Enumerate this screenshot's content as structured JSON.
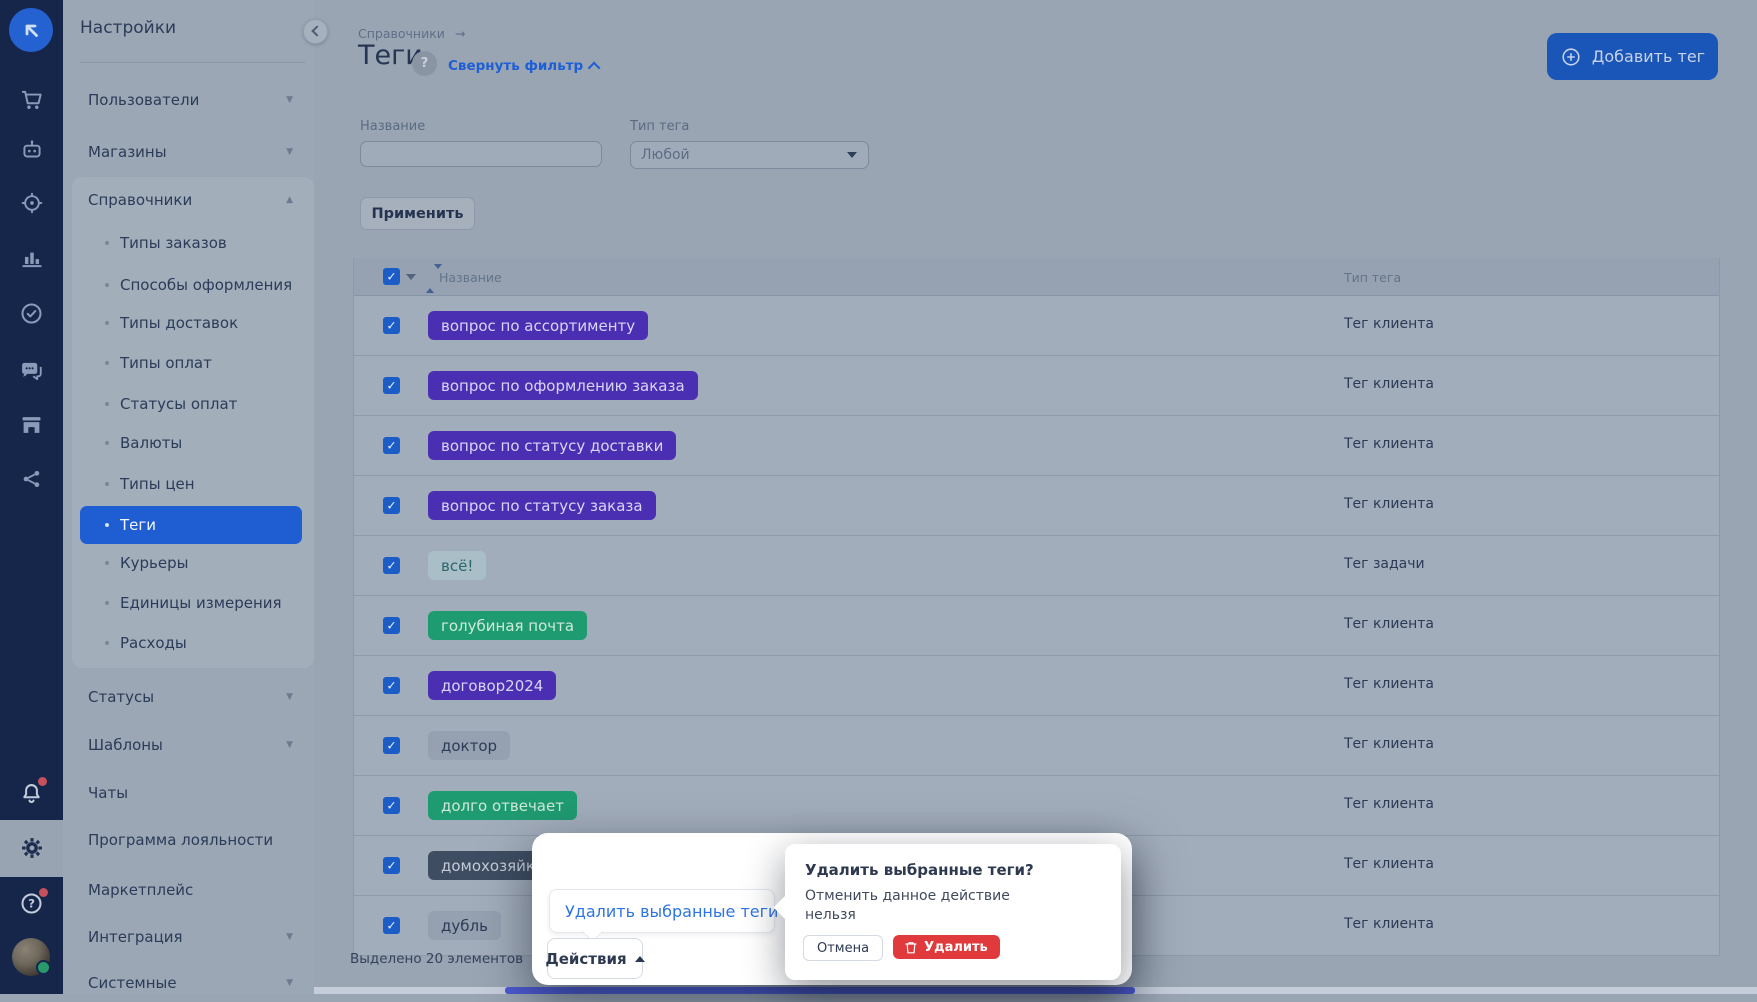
{
  "rail": {
    "icons": [
      {
        "name": "logo"
      },
      {
        "name": "orders-cart"
      },
      {
        "name": "bot"
      },
      {
        "name": "courier-target"
      },
      {
        "name": "analytics-chart"
      },
      {
        "name": "tasks-check"
      },
      {
        "name": "chats"
      },
      {
        "name": "store"
      },
      {
        "name": "integrations-share"
      },
      {
        "name": "notifications-bell",
        "badge": true
      },
      {
        "name": "settings-gear",
        "active": true
      },
      {
        "name": "help-question",
        "badge": true,
        "glyph": "?"
      },
      {
        "name": "avatar",
        "status": "online"
      }
    ]
  },
  "sidebar": {
    "title": "Настройки",
    "items": [
      {
        "label": "Пользователи",
        "chevron": "down"
      },
      {
        "label": "Магазины",
        "chevron": "down"
      },
      {
        "label": "Справочники",
        "chevron": "up",
        "children": [
          {
            "label": "Типы заказов"
          },
          {
            "label": "Способы оформления"
          },
          {
            "label": "Типы доставок"
          },
          {
            "label": "Типы оплат"
          },
          {
            "label": "Статусы оплат"
          },
          {
            "label": "Валюты"
          },
          {
            "label": "Типы цен"
          },
          {
            "label": "Теги",
            "active": true
          },
          {
            "label": "Курьеры"
          },
          {
            "label": "Единицы измерения"
          },
          {
            "label": "Расходы"
          }
        ]
      },
      {
        "label": "Статусы",
        "chevron": "down"
      },
      {
        "label": "Шаблоны",
        "chevron": "down"
      },
      {
        "label": "Чаты",
        "chevron": ""
      },
      {
        "label": "Программа лояльности",
        "chevron": ""
      },
      {
        "label": "Маркетплейс",
        "chevron": ""
      },
      {
        "label": "Интеграция",
        "chevron": "down"
      },
      {
        "label": "Системные",
        "chevron": "down"
      }
    ]
  },
  "header": {
    "breadcrumb": "Справочники",
    "breadcrumb_arrow": "→",
    "title": "Теги",
    "help_glyph": "?",
    "collapse_filter": "Свернуть фильтр",
    "add_button": "Добавить тег"
  },
  "filter": {
    "name_label": "Название",
    "name_value": "",
    "type_label": "Тип тега",
    "type_value": "Любой",
    "apply_label": "Применить"
  },
  "table": {
    "col_name": "Название",
    "col_type": "Тип тега",
    "rows": [
      {
        "tag": "вопрос по ассортименту",
        "color": "purple",
        "type": "Тег клиента",
        "checked": true
      },
      {
        "tag": "вопрос по оформлению заказа",
        "color": "purple",
        "type": "Тег клиента",
        "checked": true
      },
      {
        "tag": "вопрос по статусу доставки",
        "color": "purple",
        "type": "Тег клиента",
        "checked": true
      },
      {
        "tag": "вопрос по статусу заказа",
        "color": "purple",
        "type": "Тег клиента",
        "checked": true
      },
      {
        "tag": "всё!",
        "color": "teal",
        "type": "Тег задачи",
        "checked": true
      },
      {
        "tag": "голубиная почта",
        "color": "green",
        "type": "Тег клиента",
        "checked": true
      },
      {
        "tag": "договор2024",
        "color": "purple",
        "type": "Тег клиента",
        "checked": true
      },
      {
        "tag": "доктор",
        "color": "gray",
        "type": "Тег клиента",
        "checked": true
      },
      {
        "tag": "долго отвечает",
        "color": "green",
        "type": "Тег клиента",
        "checked": true
      },
      {
        "tag": "домохозяйка",
        "color": "slate",
        "type": "Тег клиента",
        "checked": true
      },
      {
        "tag": "дубль",
        "color": "gray",
        "type": "Тег клиента",
        "checked": true
      }
    ]
  },
  "footer": {
    "selected_text": "Выделено 20 элементов",
    "actions_label": "Действия"
  },
  "dropdown": {
    "item_label": "Удалить выбранные теги"
  },
  "popover": {
    "title": "Удалить выбранные теги?",
    "body": "Отменить данное действие нельзя",
    "cancel_label": "Отмена",
    "confirm_label": "Удалить"
  },
  "colors": {
    "accent_blue": "#1e5ed2",
    "add_button_blue": "#1a55b8",
    "link_blue": "#1d5fd6",
    "menu_link_blue": "#2d74e4",
    "delete_red": "#e03a3c",
    "notification_red": "#c6505c",
    "online_green": "#27996c",
    "rail_bg": "#16264a",
    "scroll_thumb": "#4d5ad0",
    "tags": {
      "purple": {
        "bg": "#4b2fb3",
        "text": "#d8d6f4"
      },
      "green": {
        "bg": "#1f9b71",
        "text": "#cfe9da"
      },
      "teal": {
        "bg": "#a9bec6",
        "text": "#2b686c"
      },
      "gray": {
        "bg": "#95a1b0",
        "text": "#2c3b57"
      },
      "slate": {
        "bg": "#3e4d62",
        "text": "#c4ccd7"
      }
    }
  }
}
